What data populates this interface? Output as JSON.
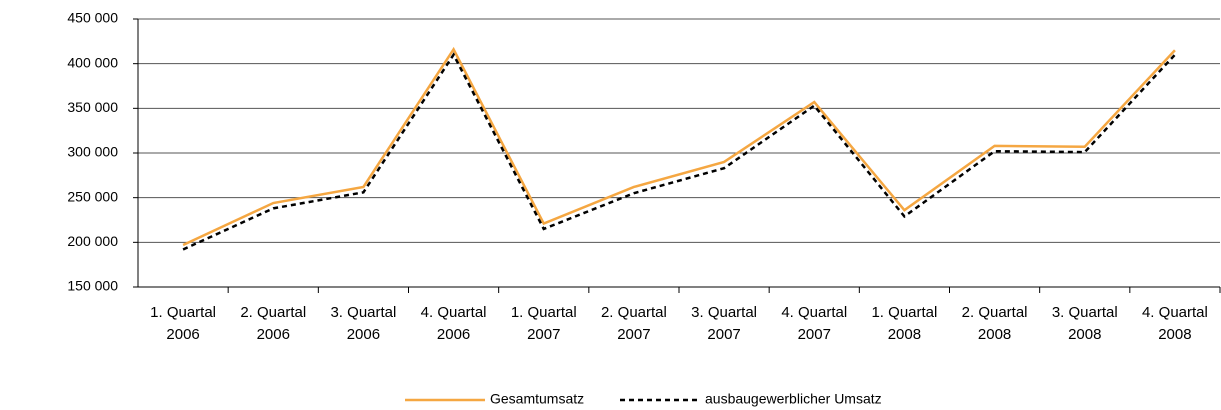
{
  "chart_data": {
    "type": "line",
    "categories": [
      "1. Quartal 2006",
      "2. Quartal 2006",
      "3. Quartal 2006",
      "4. Quartal 2006",
      "1. Quartal 2007",
      "2. Quartal 2007",
      "3. Quartal 2007",
      "4. Quartal 2007",
      "1. Quartal 2008",
      "2. Quartal 2008",
      "3. Quartal 2008",
      "4. Quartal 2008"
    ],
    "series": [
      {
        "name": "Gesamtumsatz",
        "color": "#f5a742",
        "dash": false,
        "values": [
          197000,
          244000,
          262000,
          416000,
          221000,
          262000,
          290000,
          357000,
          236000,
          308000,
          307000,
          415000
        ]
      },
      {
        "name": "ausbaugewerblicher Umsatz",
        "color": "#000000",
        "dash": true,
        "values": [
          192000,
          238000,
          256000,
          410000,
          215000,
          255000,
          283000,
          353000,
          229000,
          302000,
          301000,
          410000
        ]
      }
    ],
    "ylim": [
      150000,
      450000
    ],
    "yticks": [
      {
        "value": 150000,
        "label": "150 000"
      },
      {
        "value": 200000,
        "label": "200 000"
      },
      {
        "value": 250000,
        "label": "250 000"
      },
      {
        "value": 300000,
        "label": "300 000"
      },
      {
        "value": 350000,
        "label": "350 000"
      },
      {
        "value": 400000,
        "label": "400 000"
      },
      {
        "value": 450000,
        "label": "450 000"
      }
    ],
    "grid": true,
    "legend": "bottom"
  }
}
